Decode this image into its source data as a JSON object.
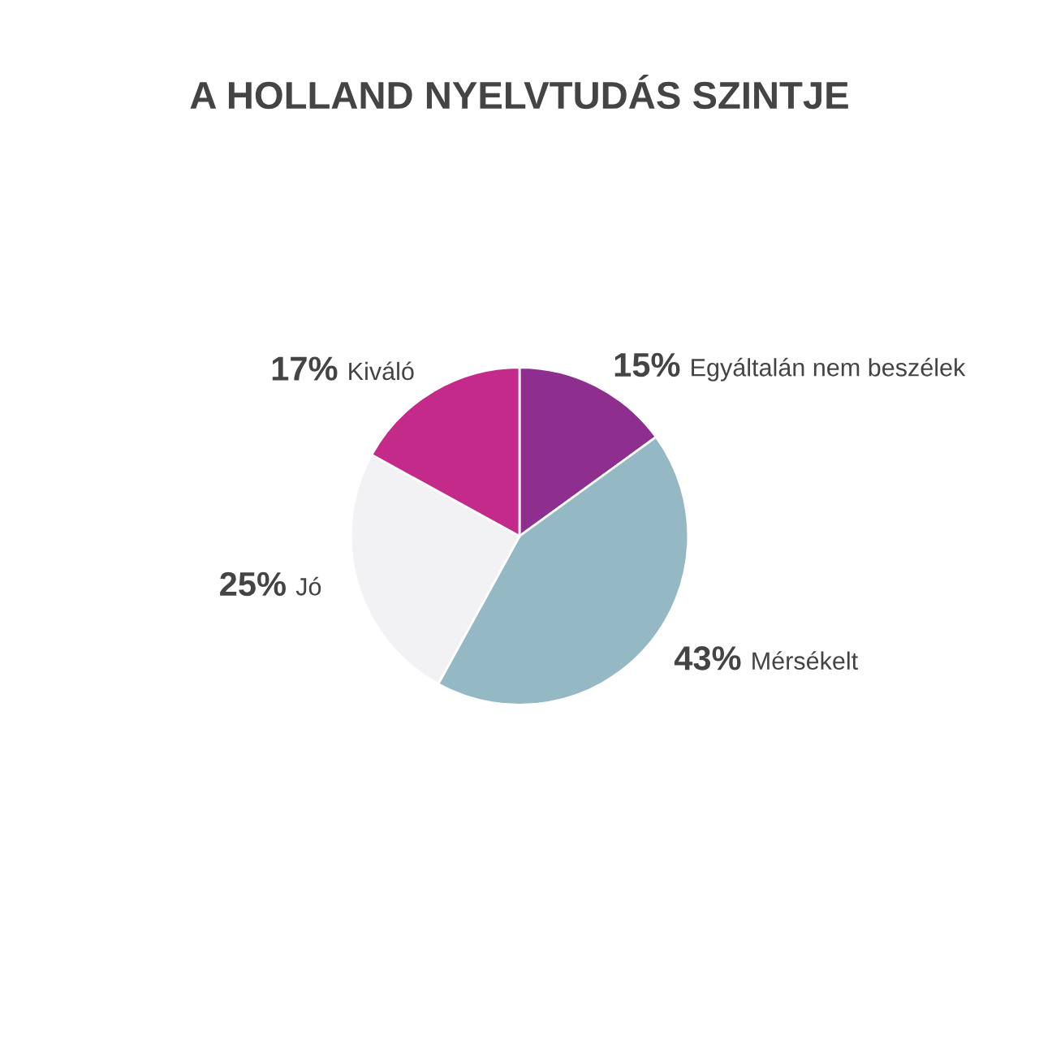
{
  "chart_data": {
    "type": "pie",
    "title": "A HOLLAND NYELVTUDÁS SZINTJE",
    "categories": [
      "Egyáltalán nem beszélek",
      "Mérsékelt",
      "Jó",
      "Kiváló"
    ],
    "values": [
      15,
      43,
      25,
      17
    ],
    "colors": [
      "#8e2f8f",
      "#94b9c5",
      "#f2f2f4",
      "#c42a8a"
    ],
    "value_labels": [
      "15%",
      "43%",
      "25%",
      "17%"
    ],
    "legend": false
  }
}
